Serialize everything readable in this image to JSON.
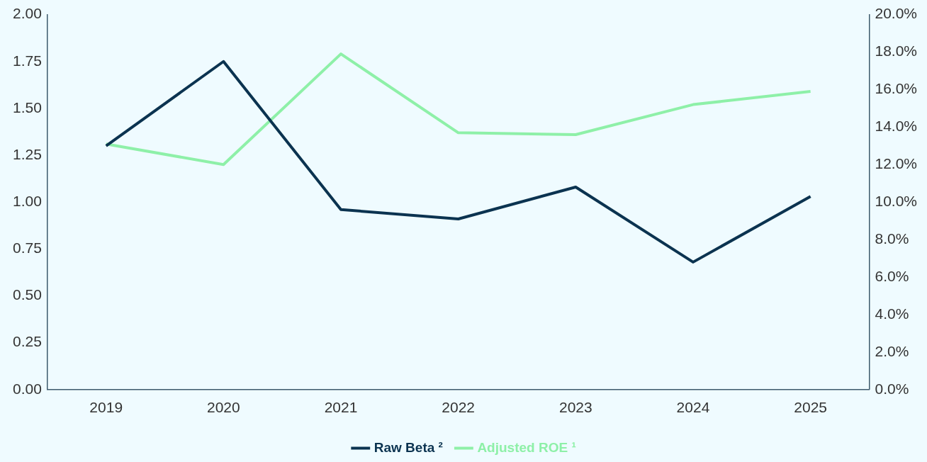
{
  "chart_data": {
    "type": "line",
    "categories": [
      "2019",
      "2020",
      "2021",
      "2022",
      "2023",
      "2024",
      "2025"
    ],
    "series": [
      {
        "name": "Raw Beta ²",
        "color": "#0b3350",
        "values": [
          1.3,
          1.75,
          0.96,
          0.91,
          1.08,
          0.68,
          1.03
        ]
      },
      {
        "name": "Adjusted ROE ¹",
        "color": "#8ef0a8",
        "axis": "y2",
        "values": [
          13.1,
          12.0,
          17.9,
          13.7,
          13.6,
          15.2,
          15.9
        ]
      }
    ],
    "ylim": [
      0,
      2
    ],
    "yticks": [
      {
        "value": 0,
        "label": "0.00"
      },
      {
        "value": 0.25,
        "label": "0.25"
      },
      {
        "value": 0.5,
        "label": "0.50"
      },
      {
        "value": 0.75,
        "label": "0.75"
      },
      {
        "value": 1,
        "label": "1.00"
      },
      {
        "value": 1.25,
        "label": "1.25"
      },
      {
        "value": 1.5,
        "label": "1.50"
      },
      {
        "value": 1.75,
        "label": "1.75"
      },
      {
        "value": 2,
        "label": "2.00"
      }
    ],
    "y2lim": [
      0,
      20
    ],
    "y2ticks": [
      {
        "value": 0,
        "label": "0.0%"
      },
      {
        "value": 2,
        "label": "2.0%"
      },
      {
        "value": 4,
        "label": "4.0%"
      },
      {
        "value": 6,
        "label": "6.0%"
      },
      {
        "value": 8,
        "label": "8.0%"
      },
      {
        "value": 10,
        "label": "10.0%"
      },
      {
        "value": 12,
        "label": "12.0%"
      },
      {
        "value": 14,
        "label": "14.0%"
      },
      {
        "value": 16,
        "label": "16.0%"
      },
      {
        "value": 18,
        "label": "18.0%"
      },
      {
        "value": 20,
        "label": "20.0%"
      }
    ],
    "grid": false,
    "legend": "bottom",
    "marker": "none",
    "line_style": "solid"
  }
}
